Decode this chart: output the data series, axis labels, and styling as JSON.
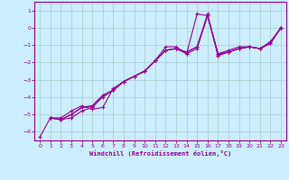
{
  "xlabel": "Windchill (Refroidissement éolien,°C)",
  "background_color": "#cceeff",
  "grid_color": "#aacccc",
  "line_color": "#990099",
  "xlim": [
    -0.5,
    23.5
  ],
  "ylim": [
    -6.5,
    1.5
  ],
  "yticks": [
    1,
    0,
    -1,
    -2,
    -3,
    -4,
    -5,
    -6
  ],
  "xticks": [
    0,
    1,
    2,
    3,
    4,
    5,
    6,
    7,
    8,
    9,
    10,
    11,
    12,
    13,
    14,
    15,
    16,
    17,
    18,
    19,
    20,
    21,
    22,
    23
  ],
  "lines": [
    {
      "x": [
        0,
        1,
        2,
        3,
        4,
        5,
        6,
        7,
        8,
        9,
        10,
        11,
        12,
        13,
        14,
        15,
        16,
        17,
        18,
        19,
        20,
        21,
        22,
        23
      ],
      "y": [
        -6.3,
        -5.2,
        -5.2,
        -4.8,
        -4.5,
        -4.7,
        -4.6,
        -3.5,
        -3.1,
        -2.8,
        -2.5,
        -1.9,
        -1.1,
        -1.1,
        -1.5,
        0.8,
        0.7,
        -1.5,
        -1.3,
        -1.1,
        -1.1,
        -1.2,
        -0.8,
        0.0
      ]
    },
    {
      "x": [
        1,
        2,
        3,
        4,
        5,
        6,
        7,
        8,
        9,
        10,
        11,
        12,
        13,
        14,
        15,
        16,
        17,
        18,
        19,
        20,
        21,
        22,
        23
      ],
      "y": [
        -5.2,
        -5.3,
        -5.0,
        -4.6,
        -4.5,
        -3.9,
        -3.6,
        -3.1,
        -2.8,
        -2.5,
        -1.9,
        -1.3,
        -1.2,
        -1.5,
        -1.2,
        0.7,
        -1.5,
        -1.4,
        -1.2,
        -1.1,
        -1.2,
        -0.9,
        0.0
      ]
    },
    {
      "x": [
        1,
        2,
        3,
        4,
        5,
        6,
        7,
        8,
        9,
        10,
        11,
        12,
        13,
        14,
        15,
        16,
        17,
        18,
        19,
        20,
        21,
        22,
        23
      ],
      "y": [
        -5.2,
        -5.3,
        -5.0,
        -4.6,
        -4.5,
        -3.9,
        -3.6,
        -3.1,
        -2.8,
        -2.5,
        -1.9,
        -1.3,
        -1.2,
        -1.4,
        -1.1,
        0.7,
        -1.6,
        -1.4,
        -1.2,
        -1.1,
        -1.2,
        -0.9,
        0.0
      ]
    },
    {
      "x": [
        1,
        2,
        3,
        4,
        5,
        6,
        7,
        8,
        9,
        10,
        11,
        12,
        13,
        14,
        15,
        16,
        17,
        18,
        19,
        20,
        21,
        22,
        23
      ],
      "y": [
        -5.2,
        -5.3,
        -5.2,
        -4.8,
        -4.6,
        -4.0,
        -3.6,
        -3.1,
        -2.8,
        -2.5,
        -1.9,
        -1.3,
        -1.2,
        -1.4,
        -1.1,
        0.8,
        -1.6,
        -1.4,
        -1.2,
        -1.1,
        -1.2,
        -0.9,
        0.0
      ]
    }
  ]
}
